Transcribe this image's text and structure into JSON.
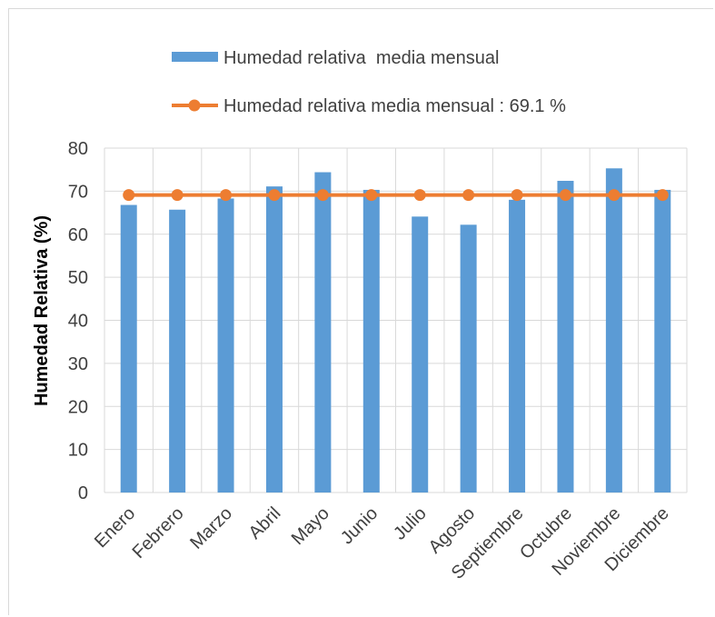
{
  "chart_data": {
    "type": "bar",
    "categories": [
      "Enero",
      "Febrero",
      "Marzo",
      "Abril",
      "Mayo",
      "Junio",
      "Julio",
      "Agosto",
      "Septiembre",
      "Octubre",
      "Noviembre",
      "Diciembre"
    ],
    "series": [
      {
        "name": "Humedad relativa  media mensual",
        "type": "bar",
        "color": "#5b9bd5",
        "values": [
          66.8,
          65.7,
          68.3,
          71.1,
          74.4,
          70.3,
          64.1,
          62.2,
          68.0,
          72.4,
          75.3,
          70.3
        ]
      },
      {
        "name": "Humedad relativa media mensual : 69.1 %",
        "type": "line",
        "color": "#ed7d31",
        "values": [
          69.1,
          69.1,
          69.1,
          69.1,
          69.1,
          69.1,
          69.1,
          69.1,
          69.1,
          69.1,
          69.1,
          69.1
        ]
      }
    ],
    "ylabel": "Humedad Relativa (%)",
    "xlabel": "",
    "ylim": [
      0,
      80
    ],
    "yticks": [
      0,
      10,
      20,
      30,
      40,
      50,
      60,
      70,
      80
    ],
    "grid": true,
    "legend_position": "top"
  }
}
